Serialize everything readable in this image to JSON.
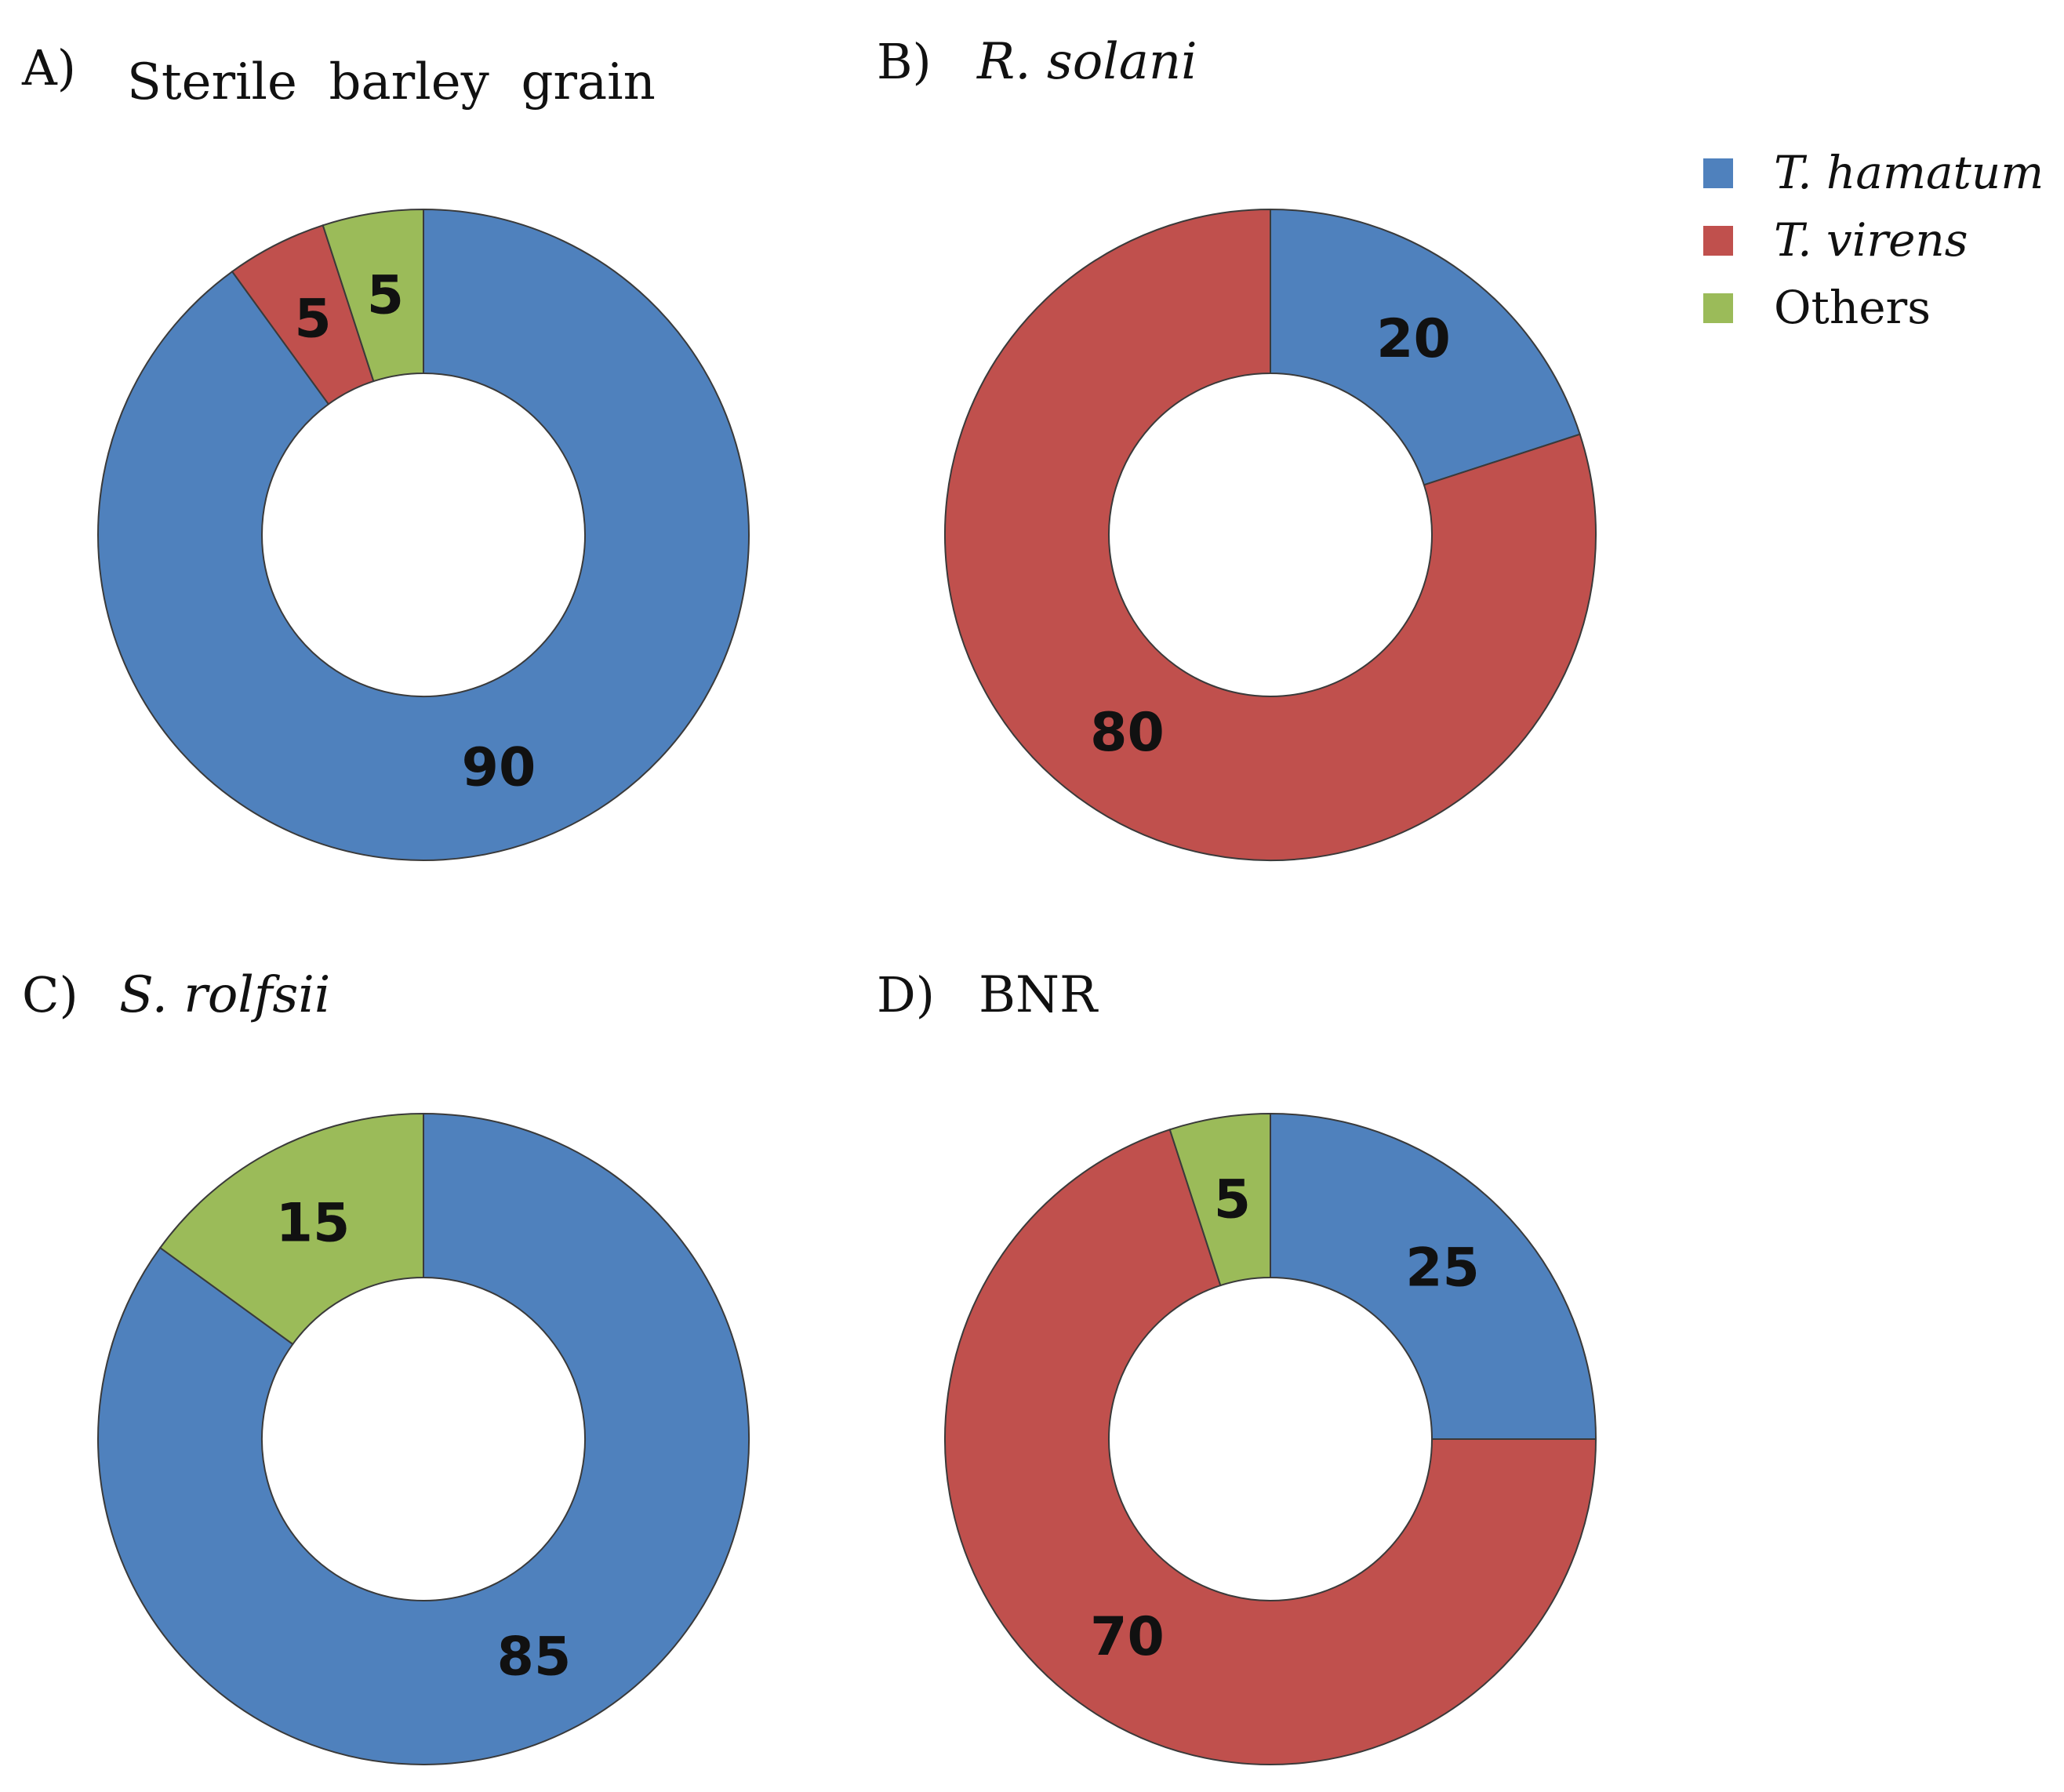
{
  "legend": [
    {
      "label": "T. hamatum",
      "color": "#4f81bd",
      "italic": true
    },
    {
      "label": "T. virens",
      "color": "#c0504d",
      "italic": true
    },
    {
      "label": "Others",
      "color": "#9bbb59",
      "italic": false
    }
  ],
  "chart_data": [
    {
      "type": "pie",
      "panel": "A)",
      "title": "Sterile  barley  grain",
      "title_italic": false,
      "series": [
        {
          "name": "T. hamatum",
          "value": 90,
          "color": "#4f81bd"
        },
        {
          "name": "T. virens",
          "value": 5,
          "color": "#c0504d"
        },
        {
          "name": "Others",
          "value": 5,
          "color": "#9bbb59"
        }
      ]
    },
    {
      "type": "pie",
      "panel": "B)",
      "title": "R. solani",
      "title_italic": true,
      "series": [
        {
          "name": "T. hamatum",
          "value": 20,
          "color": "#4f81bd"
        },
        {
          "name": "T. virens",
          "value": 80,
          "color": "#c0504d"
        }
      ]
    },
    {
      "type": "pie",
      "panel": "C)",
      "title": "S. rolfsii",
      "title_italic": true,
      "series": [
        {
          "name": "T. hamatum",
          "value": 85,
          "color": "#4f81bd"
        },
        {
          "name": "Others",
          "value": 15,
          "color": "#9bbb59"
        }
      ]
    },
    {
      "type": "pie",
      "panel": "D)",
      "title": "BNR",
      "title_italic": false,
      "series": [
        {
          "name": "T. hamatum",
          "value": 25,
          "color": "#4f81bd"
        },
        {
          "name": "T. virens",
          "value": 70,
          "color": "#c0504d"
        },
        {
          "name": "Others",
          "value": 5,
          "color": "#9bbb59"
        }
      ]
    }
  ]
}
